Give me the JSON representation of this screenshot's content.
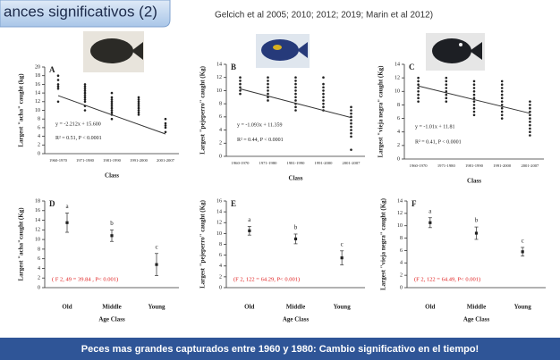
{
  "slide": {
    "title": "ances significativos (2)",
    "citation": "Gelcich et al 2005; 2010; 2012; 2019; Marin et al 2012)",
    "footer": "Peces mas grandes capturados entre 1960 y 1980: Cambio significativo en el tiempo!"
  },
  "chart_data": [
    {
      "type": "strip",
      "panel": "A",
      "ylabel": "Largest \"acha\" caught (kg)",
      "xlabel": "Class",
      "categories": [
        "1960-1970",
        "1971-1980",
        "1981-1990",
        "1991-2000",
        "2001-2007"
      ],
      "values": [
        [
          18,
          17,
          16,
          15.5,
          15,
          12
        ],
        [
          16,
          15.5,
          15,
          14.5,
          14,
          13.5,
          13,
          12.5,
          12,
          11,
          10
        ],
        [
          14,
          13,
          12.5,
          12,
          11.5,
          11,
          10.5,
          10,
          9.5,
          9,
          8
        ],
        [
          13,
          12.5,
          12,
          11.5,
          11,
          10.5,
          10,
          9.5,
          9
        ],
        [
          8,
          7,
          6.5,
          6,
          5
        ]
      ],
      "trendline": {
        "slope": -2.212,
        "intercept": 15.6,
        "equation": "y = -2.212x + 15.600",
        "stats": "R² = 0.51, P < 0.0001"
      },
      "ylim": [
        0,
        20
      ],
      "yticks": [
        0,
        2,
        4,
        6,
        8,
        10,
        12,
        14,
        16,
        18,
        20
      ],
      "color": "#222222"
    },
    {
      "type": "strip",
      "panel": "B",
      "ylabel": "Largest \"pejeperro\" caught (Kg)",
      "xlabel": "Class",
      "categories": [
        "1960-1970",
        "1971-1980",
        "1981-1990",
        "1991-2000",
        "2001-2007"
      ],
      "values": [
        [
          12,
          11.5,
          11,
          10.5,
          10,
          9.5
        ],
        [
          12,
          11.5,
          11,
          10.5,
          10,
          9.5,
          9,
          8.5
        ],
        [
          12,
          11.5,
          11,
          10.5,
          10,
          9.5,
          9,
          8.5,
          8,
          7.5,
          7
        ],
        [
          12,
          11,
          10.5,
          10,
          9.5,
          9,
          8.5,
          8,
          7.5,
          7
        ],
        [
          7.5,
          7,
          6.5,
          6,
          5.5,
          5,
          4.5,
          4,
          3.5,
          3,
          1
        ]
      ],
      "trendline": {
        "slope": -1.093,
        "intercept": 11.359,
        "equation": "y = -1.093x + 11.359",
        "stats": "R² = 0.44, P < 0.0001"
      },
      "ylim": [
        0,
        14
      ],
      "yticks": [
        0,
        2,
        4,
        6,
        8,
        10,
        12,
        14
      ],
      "color": "#222222"
    },
    {
      "type": "strip",
      "panel": "C",
      "ylabel": "Largest \"vieja negra\" caught (Kg)",
      "xlabel": "Class",
      "categories": [
        "1960-1970",
        "1971-1980",
        "1981-1990",
        "1991-2000",
        "2001-2007"
      ],
      "values": [
        [
          12,
          11.5,
          11,
          10.5,
          10,
          9.5,
          9,
          8.5
        ],
        [
          12,
          11.5,
          11,
          10.5,
          10,
          9.5,
          9,
          8.5
        ],
        [
          11.5,
          11,
          10.5,
          10,
          9.5,
          9,
          8.5,
          8,
          7.5,
          7,
          6.5
        ],
        [
          11.5,
          11,
          10.5,
          10,
          9.5,
          9,
          8.5,
          8,
          7.5,
          7,
          6.5,
          6
        ],
        [
          8.5,
          8,
          7.5,
          7,
          6.5,
          6,
          5.5,
          5,
          4.5,
          4,
          3.5
        ]
      ],
      "trendline": {
        "slope": -1.01,
        "intercept": 11.81,
        "equation": "y = -1.01x + 11.81",
        "stats": "R² = 0.41, P < 0.0001"
      },
      "ylim": [
        0,
        14
      ],
      "yticks": [
        0,
        2,
        4,
        6,
        8,
        10,
        12,
        14
      ],
      "color": "#222222"
    },
    {
      "type": "errorbar",
      "panel": "D",
      "ylabel": "Largest \"acha\"caught (Kg)",
      "xlabel": "Age Class",
      "categories": [
        "Old",
        "Middle",
        "Young"
      ],
      "values": [
        13.5,
        10.8,
        4.8
      ],
      "errors": [
        2,
        1.2,
        2.3
      ],
      "group_labels": [
        "a",
        "b",
        "c"
      ],
      "annotation": "( F 2, 49 = 39.84 , P< 0.001)",
      "annotation_color": "#e02020",
      "ylim": [
        0,
        18
      ],
      "yticks": [
        0,
        2,
        4,
        6,
        8,
        10,
        12,
        14,
        16,
        18
      ],
      "color": "#222222"
    },
    {
      "type": "errorbar",
      "panel": "E",
      "ylabel": "Largest \"pejeperro\" caught (Kg)",
      "xlabel": "Age Class",
      "categories": [
        "Old",
        "Middle",
        "Young"
      ],
      "values": [
        10.5,
        9,
        5.5
      ],
      "errors": [
        0.8,
        0.9,
        1.3
      ],
      "group_labels": [
        "a",
        "b",
        "c"
      ],
      "annotation": "(F 2, 122 = 64.29, P< 0.001)",
      "annotation_color": "#e02020",
      "ylim": [
        0,
        16
      ],
      "yticks": [
        0,
        2,
        4,
        6,
        8,
        10,
        12,
        14,
        16
      ],
      "color": "#222222"
    },
    {
      "type": "errorbar",
      "panel": "F",
      "ylabel": "Largest \"vieja negra\" caught (Kg)",
      "xlabel": "Age Class",
      "categories": [
        "Old",
        "Middle",
        "Young"
      ],
      "values": [
        10.5,
        8.8,
        5.8
      ],
      "errors": [
        0.8,
        1,
        0.7
      ],
      "group_labels": [
        "a",
        "b",
        "c"
      ],
      "annotation": "(F 2, 122 = 64.49, P< 0.001)",
      "annotation_color": "#e02020",
      "ylim": [
        0,
        14
      ],
      "yticks": [
        0,
        2,
        4,
        6,
        8,
        10,
        12,
        14
      ],
      "color": "#222222"
    }
  ]
}
